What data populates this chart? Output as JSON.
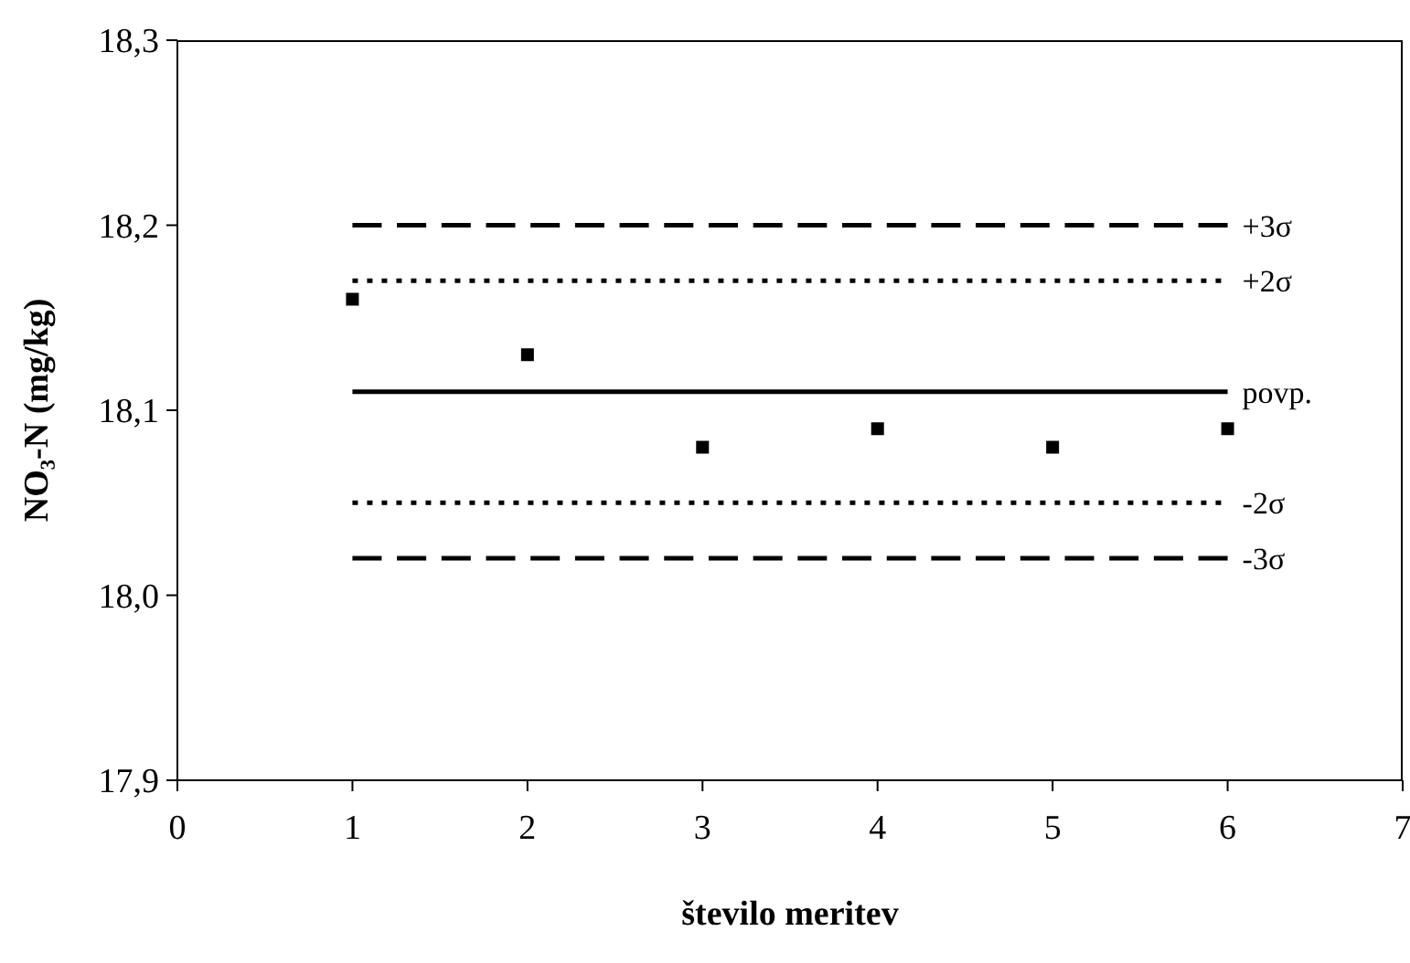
{
  "chart_data": {
    "type": "scatter",
    "xlabel": "število meritev",
    "ylabel": "NO₃-N (mg/kg)",
    "xlim": [
      0,
      7
    ],
    "xticks": [
      0,
      1,
      2,
      3,
      4,
      5,
      6,
      7
    ],
    "ylim": [
      17.9,
      18.3
    ],
    "yticks": [
      {
        "value": 17.9,
        "label": "17,9"
      },
      {
        "value": 18.0,
        "label": "18,0"
      },
      {
        "value": 18.1,
        "label": "18,1"
      },
      {
        "value": 18.2,
        "label": "18,2"
      },
      {
        "value": 18.3,
        "label": "18,3"
      }
    ],
    "grid": false,
    "series": [
      {
        "color": "#000000",
        "marker": "square",
        "x": [
          1,
          2,
          3,
          4,
          5,
          6
        ],
        "values": [
          18.16,
          18.13,
          18.08,
          18.09,
          18.08,
          18.09
        ]
      },
      {
        "type": "line",
        "name": "+3σ",
        "color": "#000000",
        "line_style": "dashed",
        "marker": "none",
        "x": [
          1,
          6
        ],
        "values": [
          18.2,
          18.2
        ]
      },
      {
        "type": "line",
        "name": "+2σ",
        "color": "#000000",
        "line_style": "dotted",
        "marker": "none",
        "x": [
          1,
          6
        ],
        "values": [
          18.17,
          18.17
        ]
      },
      {
        "type": "line",
        "name": "povp.",
        "color": "#000000",
        "line_style": "solid",
        "marker": "none",
        "x": [
          1,
          6
        ],
        "values": [
          18.11,
          18.11
        ]
      },
      {
        "type": "line",
        "name": "-2σ",
        "color": "#000000",
        "line_style": "dotted",
        "marker": "none",
        "x": [
          1,
          6
        ],
        "values": [
          18.05,
          18.05
        ]
      },
      {
        "type": "line",
        "name": "-3σ",
        "color": "#000000",
        "line_style": "dashed",
        "marker": "none",
        "x": [
          1,
          6
        ],
        "values": [
          18.02,
          18.02
        ]
      }
    ]
  }
}
